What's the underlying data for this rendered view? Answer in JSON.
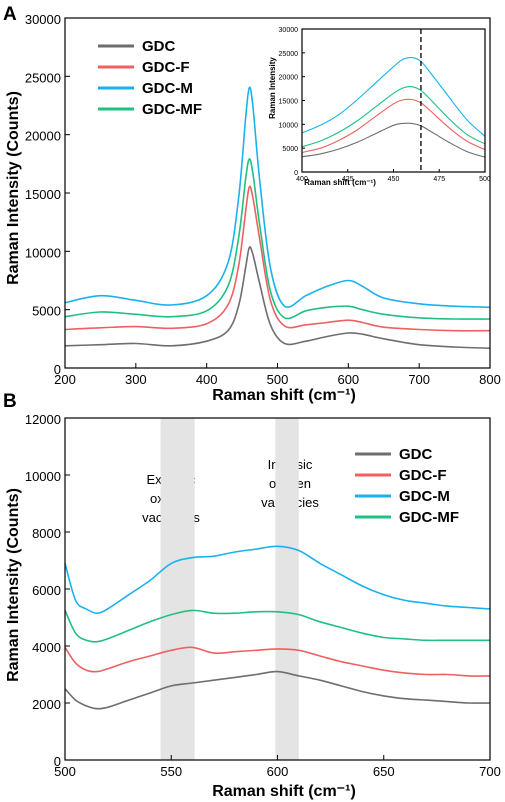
{
  "colors": {
    "GDC": "#6e6e6e",
    "GDC-F": "#f06060",
    "GDC-M": "#1ab2ee",
    "GDC-MF": "#20c080",
    "band": "#e4e4e4"
  },
  "chart_data": [
    {
      "panel": "A",
      "type": "line",
      "xlabel": "Raman shift (cm⁻¹)",
      "ylabel": "Raman Intensity (Counts)",
      "xlim": [
        200,
        800
      ],
      "ylim": [
        0,
        30000
      ],
      "xticks": [
        200,
        300,
        400,
        500,
        600,
        700,
        800
      ],
      "yticks": [
        0,
        5000,
        10000,
        15000,
        20000,
        25000,
        30000
      ],
      "legend": "top-left",
      "series": [
        {
          "name": "GDC",
          "x": [
            200,
            250,
            300,
            350,
            400,
            430,
            445,
            455,
            460,
            465,
            475,
            490,
            510,
            540,
            570,
            600,
            620,
            650,
            700,
            750,
            800
          ],
          "y": [
            1900,
            2000,
            2100,
            1900,
            2300,
            3200,
            5300,
            8600,
            10300,
            9800,
            7200,
            3700,
            2100,
            2300,
            2700,
            3000,
            2900,
            2500,
            2000,
            1800,
            1700
          ]
        },
        {
          "name": "GDC-F",
          "x": [
            200,
            250,
            300,
            350,
            400,
            430,
            445,
            455,
            460,
            465,
            475,
            490,
            510,
            540,
            570,
            600,
            620,
            650,
            700,
            750,
            800
          ],
          "y": [
            3300,
            3450,
            3550,
            3400,
            3800,
            5400,
            8700,
            13400,
            15500,
            14700,
            11000,
            5800,
            3600,
            3700,
            3900,
            4100,
            3900,
            3500,
            3300,
            3200,
            3200
          ]
        },
        {
          "name": "GDC-M",
          "x": [
            200,
            250,
            300,
            350,
            400,
            430,
            445,
            455,
            460,
            465,
            475,
            490,
            510,
            540,
            570,
            600,
            620,
            650,
            700,
            750,
            800
          ],
          "y": [
            5600,
            6200,
            5800,
            5400,
            6200,
            9000,
            14500,
            21400,
            24000,
            22600,
            16000,
            8600,
            5300,
            6200,
            7000,
            7500,
            7000,
            6000,
            5500,
            5300,
            5200
          ]
        },
        {
          "name": "GDC-MF",
          "x": [
            200,
            250,
            300,
            350,
            400,
            430,
            445,
            455,
            460,
            465,
            475,
            490,
            510,
            540,
            570,
            600,
            620,
            650,
            700,
            750,
            800
          ],
          "y": [
            4400,
            4800,
            4600,
            4400,
            4900,
            7000,
            11100,
            16200,
            17900,
            16800,
            12200,
            6600,
            4300,
            4900,
            5200,
            5300,
            5000,
            4600,
            4300,
            4200,
            4200
          ]
        }
      ]
    },
    {
      "panel": "A-inset",
      "type": "line",
      "xlabel": "Raman shift (cm⁻¹)",
      "ylabel": "Raman Intensity",
      "xlim": [
        400,
        500
      ],
      "ylim": [
        0,
        30000
      ],
      "xticks": [
        400,
        425,
        450,
        475,
        500
      ],
      "yticks": [
        0,
        5000,
        10000,
        15000,
        20000,
        25000,
        30000
      ],
      "annotation": "465",
      "marker_x": 465,
      "series": [
        {
          "name": "GDC",
          "x": [
            400,
            410,
            420,
            430,
            440,
            450,
            455,
            460,
            465,
            470,
            480,
            490,
            500
          ],
          "y": [
            3200,
            3800,
            4800,
            6200,
            8000,
            9800,
            10200,
            10200,
            9700,
            8600,
            6300,
            4300,
            3100
          ]
        },
        {
          "name": "GDC-F",
          "x": [
            400,
            410,
            420,
            430,
            440,
            450,
            455,
            460,
            465,
            470,
            480,
            490,
            500
          ],
          "y": [
            4100,
            5000,
            6600,
            8800,
            11600,
            14300,
            15100,
            15200,
            14500,
            12900,
            9400,
            6500,
            4700
          ]
        },
        {
          "name": "GDC-M",
          "x": [
            400,
            410,
            420,
            430,
            440,
            450,
            455,
            460,
            465,
            470,
            480,
            490,
            500
          ],
          "y": [
            8200,
            9800,
            12000,
            15100,
            18600,
            22100,
            23600,
            24000,
            23200,
            20900,
            15900,
            11000,
            7500
          ]
        },
        {
          "name": "GDC-MF",
          "x": [
            400,
            410,
            420,
            430,
            440,
            450,
            455,
            460,
            465,
            470,
            480,
            490,
            500
          ],
          "y": [
            5300,
            6500,
            8300,
            10700,
            13600,
            16500,
            17600,
            17900,
            17100,
            15300,
            11300,
            7900,
            5900
          ]
        }
      ]
    },
    {
      "panel": "B",
      "type": "line",
      "xlabel": "Raman shift (cm⁻¹)",
      "ylabel": "Raman Intensity (Counts)",
      "xlim": [
        500,
        700
      ],
      "ylim": [
        0,
        12000
      ],
      "xticks": [
        500,
        550,
        600,
        650,
        700
      ],
      "yticks": [
        0,
        2000,
        4000,
        6000,
        8000,
        10000,
        12000
      ],
      "legend": "top-right",
      "shaded_bands": [
        {
          "from": 545,
          "to": 561,
          "label_lines": [
            "Extrinsic",
            "oxygen",
            "vacancies"
          ]
        },
        {
          "from": 599,
          "to": 610,
          "label_lines": [
            "Intrinsic",
            "oxygen",
            "vacancies"
          ]
        }
      ],
      "series": [
        {
          "name": "GDC",
          "x": [
            500,
            505,
            510,
            515,
            520,
            530,
            540,
            550,
            560,
            570,
            580,
            590,
            600,
            610,
            620,
            630,
            640,
            650,
            660,
            670,
            680,
            690,
            700
          ],
          "y": [
            2500,
            2100,
            1900,
            1800,
            1850,
            2100,
            2350,
            2600,
            2700,
            2800,
            2900,
            3000,
            3100,
            2950,
            2800,
            2600,
            2400,
            2250,
            2150,
            2100,
            2050,
            2000,
            2000
          ]
        },
        {
          "name": "GDC-F",
          "x": [
            500,
            505,
            510,
            515,
            520,
            530,
            540,
            550,
            560,
            570,
            580,
            590,
            600,
            610,
            620,
            630,
            640,
            650,
            660,
            670,
            680,
            690,
            700
          ],
          "y": [
            3950,
            3400,
            3150,
            3100,
            3200,
            3450,
            3650,
            3850,
            3950,
            3750,
            3800,
            3850,
            3900,
            3850,
            3650,
            3450,
            3300,
            3150,
            3050,
            3000,
            3000,
            2950,
            2950
          ]
        },
        {
          "name": "GDC-M",
          "x": [
            500,
            505,
            510,
            515,
            520,
            530,
            540,
            550,
            560,
            570,
            580,
            590,
            600,
            610,
            620,
            630,
            640,
            650,
            660,
            670,
            680,
            690,
            700
          ],
          "y": [
            6900,
            5600,
            5300,
            5150,
            5300,
            5800,
            6300,
            6900,
            7100,
            7150,
            7300,
            7400,
            7500,
            7350,
            6900,
            6500,
            6100,
            5800,
            5600,
            5500,
            5400,
            5350,
            5300
          ]
        },
        {
          "name": "GDC-MF",
          "x": [
            500,
            505,
            510,
            515,
            520,
            530,
            540,
            550,
            560,
            570,
            580,
            590,
            600,
            610,
            620,
            630,
            640,
            650,
            660,
            670,
            680,
            690,
            700
          ],
          "y": [
            5250,
            4450,
            4200,
            4150,
            4250,
            4550,
            4850,
            5100,
            5250,
            5150,
            5150,
            5200,
            5200,
            5100,
            4850,
            4650,
            4450,
            4300,
            4250,
            4200,
            4200,
            4200,
            4200
          ]
        }
      ]
    }
  ],
  "labels": {
    "panel_a": "A",
    "panel_b": "B",
    "legend": [
      "GDC",
      "GDC-F",
      "GDC-M",
      "GDC-MF"
    ],
    "band1": [
      "Extrinsic",
      "oxygen",
      "vacancies"
    ],
    "band2": [
      "Intrinsic",
      "oxygen",
      "vacancies"
    ],
    "inset_annotation": "465",
    "xlabel": "Raman shift (cm⁻¹)",
    "ylabel": "Raman Intensity (Counts)",
    "inset_xlabel": "Raman shift (cm⁻¹)",
    "inset_ylabel": "Raman Intensity"
  }
}
